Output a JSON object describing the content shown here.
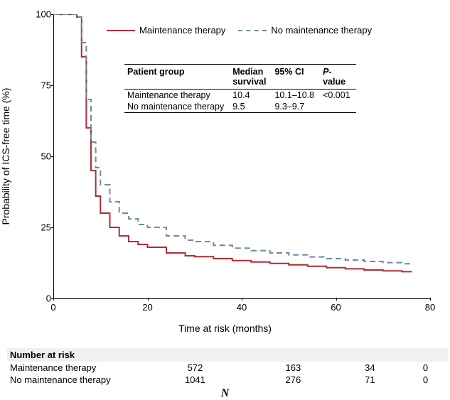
{
  "chart": {
    "type": "line",
    "xlabel": "Time at risk (months)",
    "ylabel": "Probability of ICS-free time (%)",
    "xlim": [
      0,
      80
    ],
    "ylim": [
      0,
      100
    ],
    "xtick_step": 20,
    "ytick_step": 25,
    "xticks": [
      0,
      20,
      40,
      60,
      80
    ],
    "yticks": [
      0,
      25,
      50,
      75,
      100
    ],
    "background_color": "#ffffff",
    "axis_color": "#000000",
    "label_fontsize": 14,
    "tick_fontsize": 13,
    "legend": {
      "items": [
        {
          "label": "Maintenance therapy",
          "color": "#b02c36",
          "dash": "solid"
        },
        {
          "label": "No maintenance therapy",
          "color": "#6b8ba4",
          "dash": "dashed"
        }
      ],
      "fontsize": 13
    },
    "series": [
      {
        "name": "Maintenance therapy",
        "color": "#b02c36",
        "dash": "solid",
        "line_width": 2,
        "points": [
          [
            0,
            100
          ],
          [
            3,
            100
          ],
          [
            4,
            100
          ],
          [
            5,
            99
          ],
          [
            6,
            85
          ],
          [
            7,
            60
          ],
          [
            8,
            45
          ],
          [
            9,
            36
          ],
          [
            10,
            30
          ],
          [
            12,
            25
          ],
          [
            14,
            22
          ],
          [
            16,
            20
          ],
          [
            18,
            19
          ],
          [
            20,
            18
          ],
          [
            24,
            16
          ],
          [
            28,
            15
          ],
          [
            30,
            14.7
          ],
          [
            34,
            14
          ],
          [
            38,
            13.3
          ],
          [
            42,
            12.8
          ],
          [
            46,
            12.3
          ],
          [
            50,
            11.8
          ],
          [
            54,
            11.3
          ],
          [
            58,
            10.8
          ],
          [
            62,
            10.4
          ],
          [
            66,
            10
          ],
          [
            70,
            9.7
          ],
          [
            74,
            9.4
          ],
          [
            76,
            9.2
          ]
        ]
      },
      {
        "name": "No maintenance therapy",
        "color": "#6b8ba4",
        "dash": "dashed",
        "line_width": 2,
        "points": [
          [
            0,
            100
          ],
          [
            3,
            100
          ],
          [
            4,
            100
          ],
          [
            5,
            99
          ],
          [
            6,
            90
          ],
          [
            7,
            70
          ],
          [
            8,
            55
          ],
          [
            9,
            46
          ],
          [
            10,
            40
          ],
          [
            12,
            34
          ],
          [
            14,
            30
          ],
          [
            16,
            28
          ],
          [
            18,
            26
          ],
          [
            20,
            25
          ],
          [
            24,
            22
          ],
          [
            28,
            20.5
          ],
          [
            30,
            20
          ],
          [
            34,
            18.7
          ],
          [
            38,
            17.7
          ],
          [
            42,
            16.8
          ],
          [
            46,
            16
          ],
          [
            50,
            15.3
          ],
          [
            54,
            14.6
          ],
          [
            58,
            14
          ],
          [
            62,
            13.5
          ],
          [
            66,
            13
          ],
          [
            70,
            12.6
          ],
          [
            74,
            12.2
          ],
          [
            76,
            12
          ]
        ]
      }
    ],
    "inset_table": {
      "columns": [
        "Patient group",
        "Median survival",
        "95% CI",
        "P-value"
      ],
      "column_html": [
        "Patient group",
        "Median<br>survival",
        "95% CI",
        "<i>P</i>-<br>value"
      ],
      "rows": [
        [
          "Maintenance therapy",
          "10.4",
          "10.1–10.8",
          "<0.001"
        ],
        [
          "No maintenance therapy",
          "9.5",
          "9.3–9.7",
          ""
        ]
      ],
      "fontsize": 12.5
    }
  },
  "risk_table": {
    "title": "Number at risk",
    "rows": [
      {
        "label": "Maintenance therapy",
        "values": [
          "572",
          "163",
          "34",
          "0"
        ]
      },
      {
        "label": "No maintenance therapy",
        "values": [
          "1041",
          "276",
          "71",
          "0"
        ]
      }
    ],
    "footnote": "N"
  }
}
